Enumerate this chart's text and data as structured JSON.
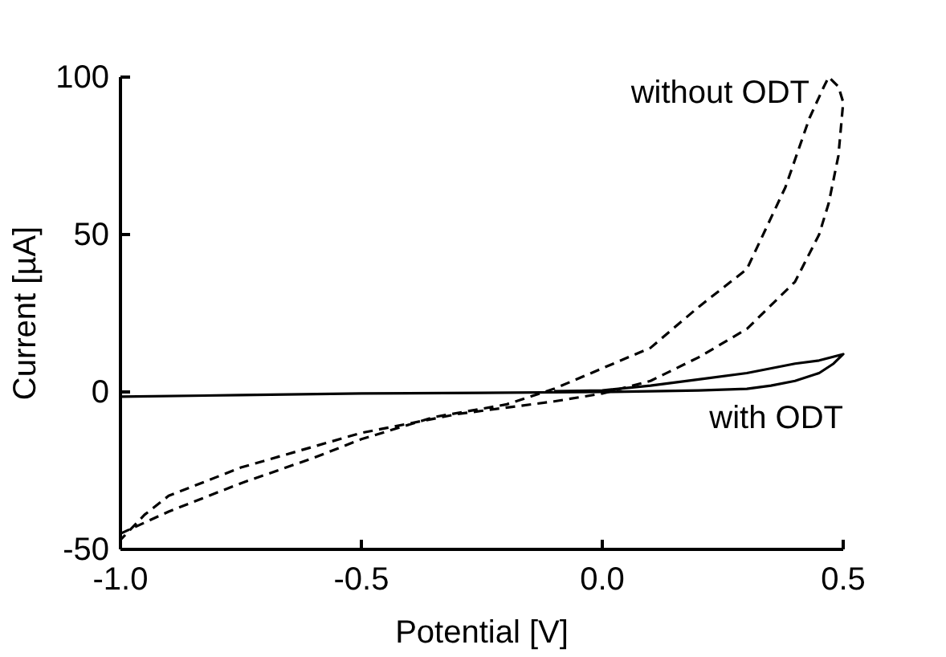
{
  "chart_data": {
    "type": "line",
    "xlabel": "Potential [V]",
    "ylabel": "Current [µA]",
    "xlim": [
      -1.0,
      0.5
    ],
    "ylim": [
      -50,
      100
    ],
    "xticks": [
      {
        "value": -1.0,
        "label": "-1.0"
      },
      {
        "value": -0.5,
        "label": "-0.5"
      },
      {
        "value": 0,
        "label": "0.0"
      },
      {
        "value": 0.5,
        "label": "0.5"
      }
    ],
    "yticks": [
      -50,
      0,
      50,
      100
    ],
    "grid": false,
    "marker": "none",
    "series": [
      {
        "name": "without ODT",
        "color": "#000000",
        "line_style": "dashed",
        "x": [
          -1.0,
          -0.9,
          -0.75,
          -0.6,
          -0.5,
          -0.35,
          -0.2,
          -0.1,
          0,
          0.1,
          0.2,
          0.3,
          0.38,
          0.43,
          0.46,
          0.47,
          0.49,
          0.5,
          0.49,
          0.47,
          0.45,
          0.4,
          0.3,
          0.2,
          0.1,
          0,
          -0.1,
          -0.3,
          -0.5,
          -0.75,
          -0.9,
          -0.95,
          -1.0
        ],
        "values": [
          -45,
          -38,
          -29,
          -21,
          -15,
          -8,
          -4,
          1,
          7.5,
          14,
          27,
          39,
          65,
          87,
          97,
          100,
          97,
          92,
          75,
          60,
          50,
          35,
          20,
          11,
          3.5,
          -0.5,
          -3,
          -7,
          -13,
          -24,
          -33,
          -39,
          -47
        ]
      },
      {
        "name": "with ODT",
        "color": "#000000",
        "line_style": "solid",
        "x": [
          -1.0,
          -0.75,
          -0.5,
          -0.25,
          0,
          0.1,
          0.2,
          0.3,
          0.35,
          0.4,
          0.45,
          0.48,
          0.5,
          0.45,
          0.4,
          0.3,
          0.2,
          0.1,
          0,
          -0.1
        ],
        "values": [
          -1.5,
          -1,
          -0.5,
          -0.3,
          0,
          0.2,
          0.5,
          1,
          2,
          3.5,
          6,
          9,
          12,
          10,
          9,
          6,
          4,
          2,
          0.5,
          0.2
        ]
      }
    ]
  }
}
